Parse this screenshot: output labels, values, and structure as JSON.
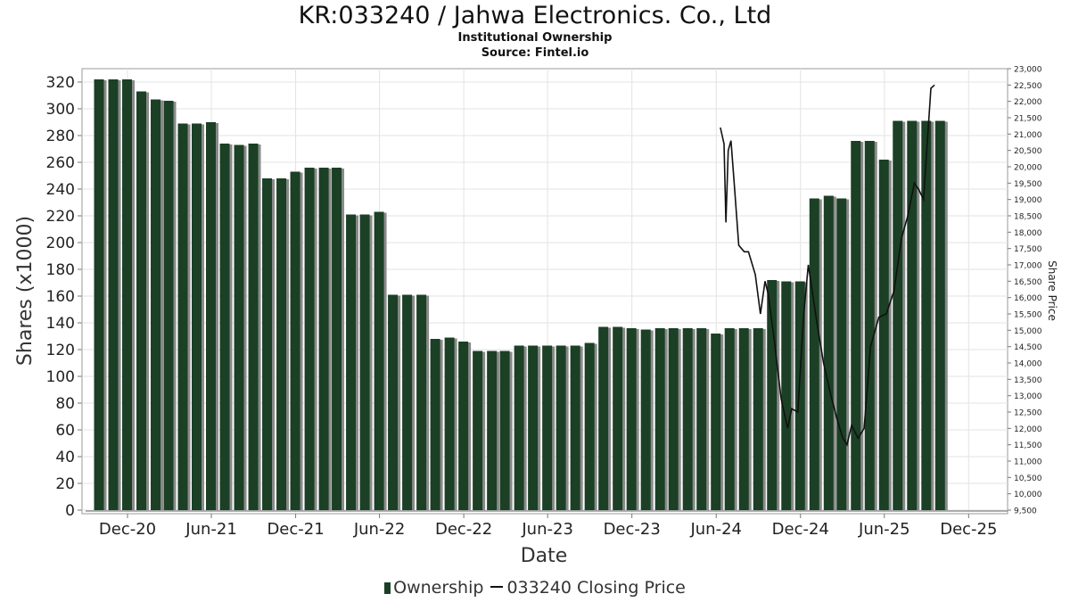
{
  "chart_data": {
    "type": "bar",
    "title": "KR:033240 / Jahwa Electronics. Co., Ltd",
    "subtitle": "Institutional Ownership",
    "source": "Source: Fintel.io",
    "xlabel": "Date",
    "ylabel": "Shares (x1000)",
    "y2label": "Share Price",
    "ylim": [
      0,
      330
    ],
    "y2lim": [
      9500,
      23000
    ],
    "grid": true,
    "legend_position": "bottom",
    "x_ticks": [
      "Dec-20",
      "Jun-21",
      "Dec-21",
      "Jun-22",
      "Dec-22",
      "Jun-23",
      "Dec-23",
      "Jun-24",
      "Dec-24",
      "Jun-25",
      "Dec-25"
    ],
    "y_ticks": [
      "0",
      "20",
      "40",
      "60",
      "80",
      "100",
      "120",
      "140",
      "160",
      "180",
      "200",
      "220",
      "240",
      "260",
      "280",
      "300",
      "320"
    ],
    "y2_ticks": [
      "9,500",
      "10,000",
      "10,500",
      "11,000",
      "11,500",
      "12,000",
      "12,500",
      "13,000",
      "13,500",
      "14,000",
      "14,500",
      "15,000",
      "15,500",
      "16,000",
      "16,500",
      "17,000",
      "17,500",
      "18,000",
      "18,500",
      "19,000",
      "19,500",
      "20,000",
      "20,500",
      "21,000",
      "21,500",
      "22,000",
      "22,500",
      "23,000"
    ],
    "x_start": "2020-09-01",
    "series": [
      {
        "name": "Ownership",
        "type": "bar",
        "color": "#1b4025",
        "x": [
          "2020-09-30",
          "2020-10-31",
          "2020-11-30",
          "2020-12-31",
          "2021-01-31",
          "2021-02-28",
          "2021-03-31",
          "2021-04-30",
          "2021-05-31",
          "2021-06-30",
          "2021-07-31",
          "2021-08-31",
          "2021-09-30",
          "2021-10-31",
          "2021-11-30",
          "2021-12-31",
          "2022-01-31",
          "2022-02-28",
          "2022-03-31",
          "2022-04-30",
          "2022-05-31",
          "2022-06-30",
          "2022-07-31",
          "2022-08-31",
          "2022-09-30",
          "2022-10-31",
          "2022-11-30",
          "2022-12-31",
          "2023-01-31",
          "2023-02-28",
          "2023-03-31",
          "2023-04-30",
          "2023-05-31",
          "2023-06-30",
          "2023-07-31",
          "2023-08-31",
          "2023-09-30",
          "2023-10-31",
          "2023-11-30",
          "2023-12-31",
          "2024-01-31",
          "2024-02-29",
          "2024-03-31",
          "2024-04-30",
          "2024-05-31",
          "2024-06-30",
          "2024-07-31",
          "2024-08-31",
          "2024-09-30",
          "2024-10-31",
          "2024-11-30",
          "2024-12-31",
          "2025-01-31",
          "2025-02-28",
          "2025-03-31",
          "2025-04-30",
          "2025-05-31",
          "2025-06-30",
          "2025-07-31",
          "2025-08-31",
          "2025-09-30"
        ],
        "values": [
          322,
          322,
          322,
          313,
          307,
          306,
          289,
          289,
          290,
          274,
          273,
          274,
          248,
          248,
          253,
          256,
          256,
          256,
          221,
          221,
          223,
          161,
          161,
          161,
          128,
          129,
          126,
          119,
          119,
          119,
          123,
          123,
          123,
          123,
          123,
          125,
          137,
          137,
          136,
          135,
          136,
          136,
          136,
          136,
          132,
          136,
          136,
          136,
          172,
          171,
          171,
          233,
          235,
          233,
          276,
          276,
          262,
          291,
          291,
          291,
          291
        ]
      },
      {
        "name": "033240 Closing Price",
        "type": "line",
        "color": "#111111",
        "x": [
          "2024-06-10",
          "2024-06-18",
          "2024-06-22",
          "2024-06-27",
          "2024-07-03",
          "2024-07-10",
          "2024-07-20",
          "2024-08-01",
          "2024-08-10",
          "2024-08-25",
          "2024-09-05",
          "2024-09-15",
          "2024-09-22",
          "2024-10-05",
          "2024-10-20",
          "2024-11-03",
          "2024-11-12",
          "2024-11-25",
          "2024-12-08",
          "2024-12-18",
          "2025-01-05",
          "2025-01-20",
          "2025-02-05",
          "2025-02-20",
          "2025-03-03",
          "2025-03-12",
          "2025-03-22",
          "2025-04-05",
          "2025-04-18",
          "2025-05-02",
          "2025-05-20",
          "2025-06-05",
          "2025-06-22",
          "2025-07-08",
          "2025-07-22",
          "2025-08-05",
          "2025-08-15",
          "2025-08-25",
          "2025-09-10",
          "2025-09-18"
        ],
        "values": [
          21200,
          20700,
          18300,
          20500,
          20800,
          19500,
          17600,
          17400,
          17400,
          16700,
          15500,
          16500,
          16100,
          14700,
          12900,
          12000,
          12600,
          12500,
          15500,
          17000,
          15300,
          14000,
          13000,
          12200,
          11700,
          11500,
          12100,
          11700,
          12000,
          14500,
          15400,
          15500,
          16200,
          17800,
          18500,
          19500,
          19300,
          19000,
          22400,
          22500
        ]
      }
    ]
  }
}
